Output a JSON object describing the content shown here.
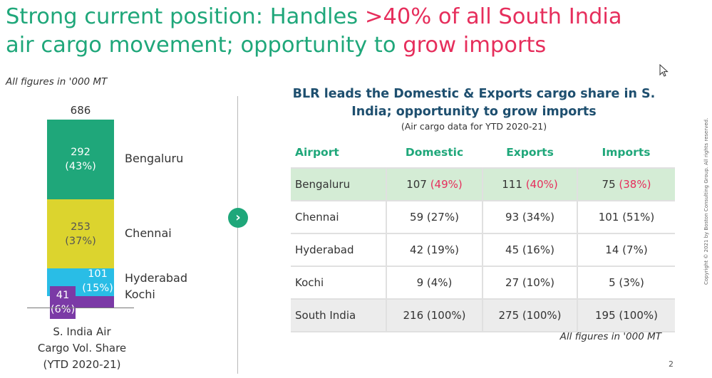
{
  "title": {
    "part1": "Strong current position: Handles ",
    "part2": ">40% of all South India",
    "part3": " air cargo movement; opportunity to ",
    "part4": "grow imports"
  },
  "left_units": "All figures in '000 MT",
  "colors": {
    "accent_green": "#1fa77a",
    "accent_red": "#e62e5c",
    "bengaluru": "#1fa77a",
    "chennai": "#dcd42e",
    "hyderabad": "#29bde6",
    "kochi": "#7b3aa6"
  },
  "chart_data": {
    "type": "bar",
    "subtype": "stacked-100",
    "title": "",
    "total": 686,
    "categories": [
      "S. India Air Cargo Vol. Share (YTD 2020-21)"
    ],
    "series": [
      {
        "name": "Bengaluru",
        "value": 292,
        "pct": "(43%)"
      },
      {
        "name": "Chennai",
        "value": 253,
        "pct": "(37%)"
      },
      {
        "name": "Hyderabad",
        "value": 101,
        "pct": "(15%)"
      },
      {
        "name": "Kochi",
        "value": 41,
        "pct": "(6%)"
      }
    ],
    "caption": [
      "S. India Air",
      "Cargo Vol. Share",
      "(YTD 2020-21)"
    ]
  },
  "panel": {
    "title_line1": "BLR leads the Domestic & Exports cargo share in S.",
    "title_line2": "India; opportunity to grow imports",
    "subtitle": "(Air cargo data for YTD 2020-21)",
    "headers": [
      "Airport",
      "Domestic",
      "Exports",
      "Imports"
    ],
    "rows": [
      {
        "airport": "Bengaluru",
        "domestic": "107",
        "domestic_pct": "(49%)",
        "exports": "111",
        "exports_pct": "(40%)",
        "imports": "75",
        "imports_pct": "(38%)"
      },
      {
        "airport": "Chennai",
        "domestic": "59",
        "domestic_pct": "(27%)",
        "exports": "93",
        "exports_pct": "(34%)",
        "imports": "101",
        "imports_pct": "(51%)"
      },
      {
        "airport": "Hyderabad",
        "domestic": "42",
        "domestic_pct": "(19%)",
        "exports": "45",
        "exports_pct": "(16%)",
        "imports": "14",
        "imports_pct": "(7%)"
      },
      {
        "airport": "Kochi",
        "domestic": "9",
        "domestic_pct": "(4%)",
        "exports": "27",
        "exports_pct": "(10%)",
        "imports": "5",
        "imports_pct": "(3%)"
      },
      {
        "airport": "South India",
        "domestic": "216",
        "domestic_pct": "(100%)",
        "exports": "275",
        "exports_pct": "(100%)",
        "imports": "195",
        "imports_pct": "(100%)"
      }
    ],
    "units": "All figures in '000 MT"
  },
  "copyright": "Copyright © 2021 by Boston Consulting Group. All rights reserved.",
  "page_number": "2"
}
